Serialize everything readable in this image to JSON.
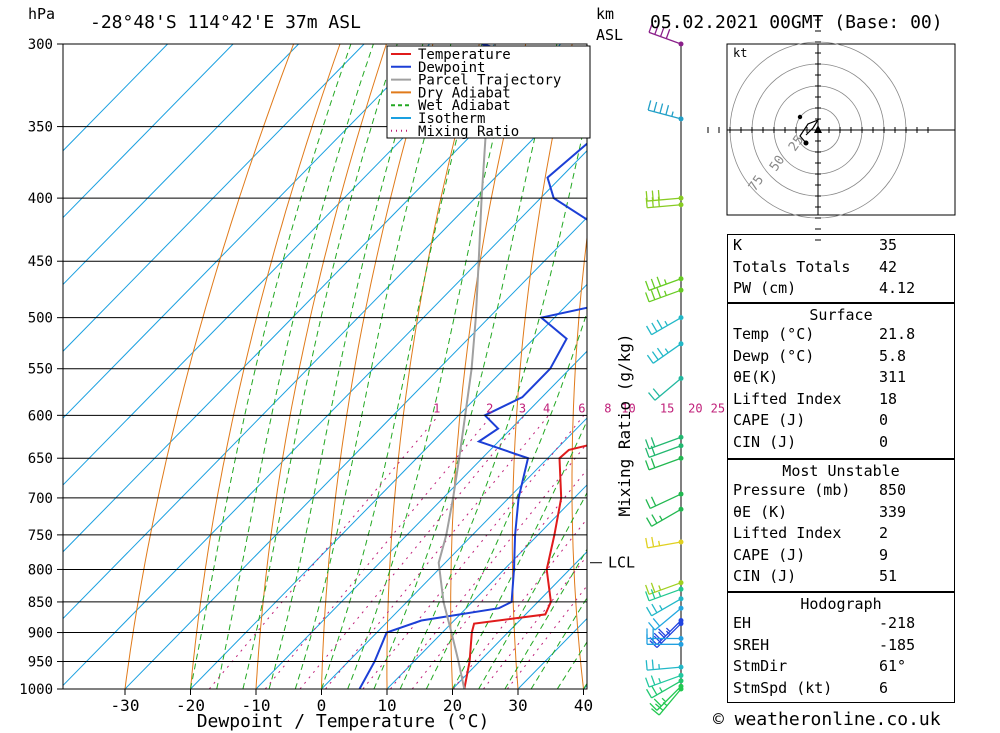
{
  "header": {
    "hpa": "hPa",
    "location": "-28°48'S 114°42'E 37m ASL",
    "km": "km",
    "asl": "ASL",
    "datetime": "05.02.2021 00GMT (Base: 00)"
  },
  "legend": {
    "items": [
      {
        "label": "Temperature",
        "color": "#e01b1b",
        "style": "solid"
      },
      {
        "label": "Dewpoint",
        "color": "#1c3fd6",
        "style": "solid"
      },
      {
        "label": "Parcel Trajectory",
        "color": "#a0a0a0",
        "style": "solid"
      },
      {
        "label": "Dry Adiabat",
        "color": "#e07a1a",
        "style": "solid"
      },
      {
        "label": "Wet Adiabat",
        "color": "#22a822",
        "style": "dashed"
      },
      {
        "label": "Isotherm",
        "color": "#1aa0e0",
        "style": "solid"
      },
      {
        "label": "Mixing Ratio",
        "color": "#c0207a",
        "style": "dotted"
      }
    ]
  },
  "chart_data": {
    "type": "line",
    "xlabel": "Dewpoint / Temperature (°C)",
    "ylabel": "hPa",
    "xlim": [
      -40,
      40
    ],
    "y_scale": "log-pressure",
    "ylim": [
      1000,
      300
    ],
    "pressure_ticks": [
      300,
      350,
      400,
      450,
      500,
      550,
      600,
      650,
      700,
      750,
      800,
      850,
      900,
      950,
      1000
    ],
    "x_ticks": [
      -30,
      -20,
      -10,
      0,
      10,
      20,
      30,
      40
    ],
    "mixing_ratio_label": "Mixing Ratio (g/kg)",
    "mixing_ratio_values": [
      1,
      2,
      3,
      4,
      6,
      8,
      10,
      15,
      20,
      25
    ],
    "lcl_label": "LCL",
    "lcl_pressure": 790,
    "series": [
      {
        "name": "Temperature",
        "color": "#e01b1b",
        "points": [
          [
            1000,
            21.8
          ],
          [
            950,
            18.5
          ],
          [
            900,
            14.5
          ],
          [
            885,
            13.5
          ],
          [
            870,
            23
          ],
          [
            850,
            22
          ],
          [
            800,
            16.5
          ],
          [
            750,
            12.5
          ],
          [
            700,
            8
          ],
          [
            650,
            1.8
          ],
          [
            640,
            2
          ],
          [
            630,
            6
          ],
          [
            610,
            7.5
          ],
          [
            600,
            6.5
          ],
          [
            550,
            -0.5
          ],
          [
            500,
            -8.5
          ],
          [
            470,
            -10
          ],
          [
            450,
            -12.5
          ],
          [
            440,
            -10.5
          ],
          [
            430,
            -14
          ],
          [
            400,
            -20
          ],
          [
            380,
            -24
          ],
          [
            365,
            -28
          ]
        ]
      },
      {
        "name": "Dewpoint",
        "color": "#1c3fd6",
        "points": [
          [
            1000,
            5.8
          ],
          [
            950,
            4
          ],
          [
            900,
            1.5
          ],
          [
            880,
            5
          ],
          [
            860,
            15
          ],
          [
            850,
            16
          ],
          [
            800,
            11.5
          ],
          [
            750,
            6.5
          ],
          [
            700,
            1.5
          ],
          [
            650,
            -3
          ],
          [
            630,
            -13
          ],
          [
            615,
            -12
          ],
          [
            600,
            -16
          ],
          [
            580,
            -13
          ],
          [
            550,
            -13
          ],
          [
            520,
            -15
          ],
          [
            500,
            -22
          ],
          [
            490,
            -16
          ],
          [
            460,
            -19
          ],
          [
            450,
            -22
          ],
          [
            430,
            -23
          ],
          [
            400,
            -38
          ],
          [
            385,
            -42
          ],
          [
            360,
            -41
          ],
          [
            345,
            -43
          ],
          [
            330,
            -42
          ],
          [
            320,
            -50
          ],
          [
            315,
            -52
          ],
          [
            310,
            -60
          ],
          [
            300,
            -72
          ]
        ]
      },
      {
        "name": "Parcel Trajectory",
        "color": "#a0a0a0",
        "points": [
          [
            1000,
            21.8
          ],
          [
            950,
            16.8
          ],
          [
            900,
            11.4
          ],
          [
            850,
            5.6
          ],
          [
            790,
            -1
          ],
          [
            750,
            -4
          ],
          [
            700,
            -8.5
          ],
          [
            650,
            -13.5
          ],
          [
            600,
            -19
          ],
          [
            550,
            -25
          ],
          [
            500,
            -32
          ],
          [
            450,
            -40
          ],
          [
            400,
            -49
          ],
          [
            350,
            -59
          ],
          [
            300,
            -70
          ]
        ]
      }
    ]
  },
  "hodograph": {
    "unit": "kt",
    "ring_labels": [
      "25",
      "50",
      "75"
    ]
  },
  "stats": {
    "general": [
      {
        "label": "K",
        "value": "35"
      },
      {
        "label": "Totals Totals",
        "value": "42"
      },
      {
        "label": "PW (cm)",
        "value": "4.12"
      }
    ],
    "surface_title": "Surface",
    "surface": [
      {
        "label": "Temp (°C)",
        "value": "21.8"
      },
      {
        "label": "Dewp (°C)",
        "value": "5.8"
      },
      {
        "label": "θE(K)",
        "value": "311"
      },
      {
        "label": "Lifted Index",
        "value": "18"
      },
      {
        "label": "CAPE (J)",
        "value": "0"
      },
      {
        "label": "CIN (J)",
        "value": "0"
      }
    ],
    "unstable_title": "Most Unstable",
    "unstable": [
      {
        "label": "Pressure (mb)",
        "value": "850"
      },
      {
        "label": "θE (K)",
        "value": "339"
      },
      {
        "label": "Lifted Index",
        "value": "2"
      },
      {
        "label": "CAPE (J)",
        "value": "9"
      },
      {
        "label": "CIN (J)",
        "value": "51"
      }
    ],
    "hodo_title": "Hodograph",
    "hodo": [
      {
        "label": "EH",
        "value": "-218"
      },
      {
        "label": "SREH",
        "value": "-185"
      },
      {
        "label": "StmDir",
        "value": "61°"
      },
      {
        "label": "StmSpd (kt)",
        "value": "6"
      }
    ]
  },
  "footer": {
    "credit": "© weatheronline.co.uk"
  },
  "wind_barbs": [
    {
      "p": 300,
      "dir": 290,
      "spd": 40,
      "color": "#8a1f8a"
    },
    {
      "p": 345,
      "dir": 285,
      "spd": 35,
      "color": "#22a0c8"
    },
    {
      "p": 400,
      "dir": 265,
      "spd": 30,
      "color": "#88cc22"
    },
    {
      "p": 405,
      "dir": 265,
      "spd": 30,
      "color": "#88cc22"
    },
    {
      "p": 465,
      "dir": 250,
      "spd": 25,
      "color": "#66cc22"
    },
    {
      "p": 475,
      "dir": 250,
      "spd": 25,
      "color": "#66cc22"
    },
    {
      "p": 500,
      "dir": 240,
      "spd": 25,
      "color": "#22b8c8"
    },
    {
      "p": 525,
      "dir": 235,
      "spd": 25,
      "color": "#22b8c8"
    },
    {
      "p": 560,
      "dir": 230,
      "spd": 20,
      "color": "#22b8a0"
    },
    {
      "p": 625,
      "dir": 250,
      "spd": 20,
      "color": "#22b870"
    },
    {
      "p": 635,
      "dir": 250,
      "spd": 20,
      "color": "#22b870"
    },
    {
      "p": 650,
      "dir": 250,
      "spd": 20,
      "color": "#22b850"
    },
    {
      "p": 695,
      "dir": 245,
      "spd": 20,
      "color": "#22b850"
    },
    {
      "p": 715,
      "dir": 240,
      "spd": 15,
      "color": "#22b850"
    },
    {
      "p": 760,
      "dir": 260,
      "spd": 15,
      "color": "#e0d020"
    },
    {
      "p": 820,
      "dir": 250,
      "spd": 15,
      "color": "#a0d020"
    },
    {
      "p": 830,
      "dir": 250,
      "spd": 15,
      "color": "#22c890"
    },
    {
      "p": 845,
      "dir": 240,
      "spd": 15,
      "color": "#22b8c8"
    },
    {
      "p": 860,
      "dir": 230,
      "spd": 20,
      "color": "#22a8e0"
    },
    {
      "p": 880,
      "dir": 225,
      "spd": 25,
      "color": "#2244e0"
    },
    {
      "p": 885,
      "dir": 225,
      "spd": 25,
      "color": "#2244e0"
    },
    {
      "p": 910,
      "dir": 270,
      "spd": 20,
      "color": "#22a0e0"
    },
    {
      "p": 920,
      "dir": 270,
      "spd": 20,
      "color": "#22a0e0"
    },
    {
      "p": 960,
      "dir": 265,
      "spd": 15,
      "color": "#22b8c8"
    },
    {
      "p": 975,
      "dir": 250,
      "spd": 15,
      "color": "#22c8a0"
    },
    {
      "p": 985,
      "dir": 240,
      "spd": 15,
      "color": "#22c870"
    },
    {
      "p": 995,
      "dir": 225,
      "spd": 15,
      "color": "#22c850"
    },
    {
      "p": 1000,
      "dir": 220,
      "spd": 15,
      "color": "#22c850"
    }
  ]
}
